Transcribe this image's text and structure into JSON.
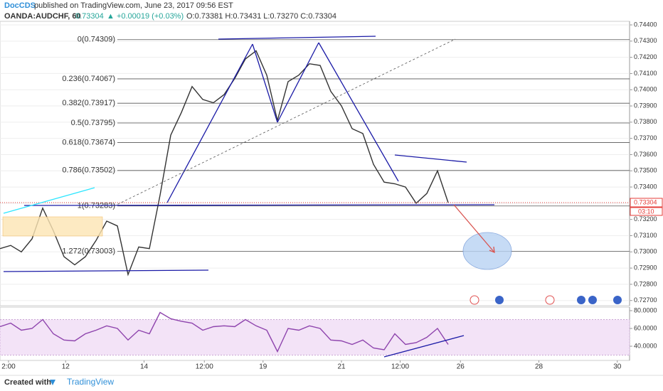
{
  "header": {
    "author": "DocCDS",
    "published": "published on TradingView.com, June 23, 2017 09:56 EST",
    "symbol": "OANDA:AUDCHF, 60",
    "last": "0.73304",
    "change": "▲ +0.00019 (+0.03%)",
    "ohlc": "O:0.73381 H:0.73431 L:0.73270 C:0.73304"
  },
  "footer": {
    "created": "Created with",
    "brand": "TradingView"
  },
  "chart_data": [
    {
      "type": "line",
      "color": "#333333",
      "xlim": [
        0,
        118
      ],
      "ylim": [
        0.72668,
        0.74422
      ],
      "grid": true,
      "yticks": [
        {
          "value": 0.744,
          "label": "0.74400"
        },
        {
          "value": 0.743,
          "label": "0.74300"
        },
        {
          "value": 0.742,
          "label": "0.74200"
        },
        {
          "value": 0.741,
          "label": "0.74100"
        },
        {
          "value": 0.74,
          "label": "0.74000"
        },
        {
          "value": 0.739,
          "label": "0.73900"
        },
        {
          "value": 0.738,
          "label": "0.73800"
        },
        {
          "value": 0.737,
          "label": "0.73700"
        },
        {
          "value": 0.736,
          "label": "0.73600"
        },
        {
          "value": 0.735,
          "label": "0.73500"
        },
        {
          "value": 0.734,
          "label": "0.73400"
        },
        {
          "value": 0.733,
          "label": "0.73300"
        },
        {
          "value": 0.732,
          "label": "0.73200"
        },
        {
          "value": 0.731,
          "label": "0.73100"
        },
        {
          "value": 0.73,
          "label": "0.73000"
        },
        {
          "value": 0.729,
          "label": "0.72900"
        },
        {
          "value": 0.728,
          "label": "0.72800"
        },
        {
          "value": 0.727,
          "label": "0.72700"
        }
      ],
      "x": [
        0,
        2,
        4,
        6,
        8,
        10,
        12,
        14,
        16,
        18,
        20,
        22,
        24,
        26,
        28,
        30,
        32,
        34,
        36,
        38,
        40,
        42,
        44,
        46,
        48,
        50,
        52,
        54,
        56,
        58,
        60,
        62,
        64,
        66,
        68,
        70,
        72,
        74,
        76,
        78,
        80,
        82,
        84
      ],
      "values": [
        0.7302,
        0.7304,
        0.73,
        0.7308,
        0.7327,
        0.7313,
        0.7297,
        0.7292,
        0.7297,
        0.7307,
        0.7319,
        0.7316,
        0.7286,
        0.7303,
        0.7302,
        0.7335,
        0.7372,
        0.7386,
        0.7402,
        0.7394,
        0.7392,
        0.7397,
        0.7407,
        0.7419,
        0.7424,
        0.7409,
        0.7381,
        0.7405,
        0.7409,
        0.7416,
        0.7415,
        0.7399,
        0.739,
        0.7376,
        0.7373,
        0.7354,
        0.7343,
        0.7342,
        0.734,
        0.733,
        0.7336,
        0.735,
        0.73304
      ],
      "levels": [
        {
          "value": 0.74309,
          "label": "0(0.74309)"
        },
        {
          "value": 0.74067,
          "label": "0.236(0.74067)"
        },
        {
          "value": 0.73917,
          "label": "0.382(0.73917)"
        },
        {
          "value": 0.73795,
          "label": "0.5(0.73795)"
        },
        {
          "value": 0.73674,
          "label": "0.618(0.73674)"
        },
        {
          "value": 0.73502,
          "label": "0.786(0.73502)"
        },
        {
          "value": 0.73283,
          "label": "1(0.73283)"
        },
        {
          "value": 0.73003,
          "label": "1.272(0.73003)"
        }
      ],
      "last_price": {
        "value": 0.73304,
        "label": "0.73304"
      },
      "countdown": "03:10"
    },
    {
      "type": "line",
      "color": "#8e44ad",
      "xlim": [
        0,
        118
      ],
      "ylim": [
        24,
        84
      ],
      "band": [
        30,
        70
      ],
      "yticks": [
        {
          "value": 80,
          "label": "80.0000"
        },
        {
          "value": 60,
          "label": "60.0000"
        },
        {
          "value": 40,
          "label": "40.0000"
        }
      ],
      "xticks": [
        {
          "value": 1.6,
          "label": "2:00"
        },
        {
          "value": 12.3,
          "label": "12"
        },
        {
          "value": 27,
          "label": "14"
        },
        {
          "value": 38.3,
          "label": "12:00"
        },
        {
          "value": 49.3,
          "label": "19"
        },
        {
          "value": 64,
          "label": "21"
        },
        {
          "value": 75,
          "label": "12:00"
        },
        {
          "value": 86.3,
          "label": "26"
        },
        {
          "value": 101,
          "label": "28"
        },
        {
          "value": 115.7,
          "label": "30"
        }
      ],
      "x": [
        0,
        2,
        4,
        6,
        8,
        10,
        12,
        14,
        16,
        18,
        20,
        22,
        24,
        26,
        28,
        30,
        32,
        34,
        36,
        38,
        40,
        42,
        44,
        46,
        48,
        50,
        52,
        54,
        56,
        58,
        60,
        62,
        64,
        66,
        68,
        70,
        72,
        74,
        76,
        78,
        80,
        82,
        84
      ],
      "values": [
        62,
        66,
        58,
        60,
        70,
        54,
        47,
        46,
        54,
        58,
        63,
        60,
        47,
        58,
        54,
        78,
        71,
        68,
        66,
        58,
        62,
        63,
        62,
        70,
        63,
        58,
        34,
        60,
        58,
        63,
        60,
        47,
        46,
        42,
        47,
        38,
        36,
        54,
        42,
        44,
        50,
        60,
        42
      ]
    }
  ]
}
